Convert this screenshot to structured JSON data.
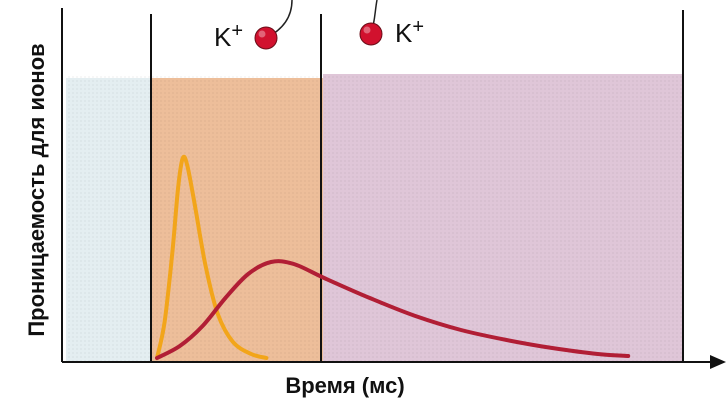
{
  "chart_data": {
    "type": "line",
    "title": "",
    "xlabel": "Время (мс)",
    "ylabel": "Проницаемость для ионов",
    "grid": false,
    "legend": "none",
    "colors": {
      "fast_curve": "#F2A51A",
      "slow_curve": "#B11E35",
      "region_1": "#E4EEF1",
      "region_2": "#EDBE9A",
      "region_3": "#DFC6D8",
      "ion_marker": "#D1112E"
    },
    "ion_labels": [
      "K+",
      "K+"
    ],
    "series": [
      {
        "color": "#F2A51A",
        "points": [
          [
            0.0,
            0.0
          ],
          [
            0.05,
            0.18
          ],
          [
            0.1,
            0.52
          ],
          [
            0.14,
            0.86
          ],
          [
            0.17,
            1.0
          ],
          [
            0.2,
            0.96
          ],
          [
            0.25,
            0.76
          ],
          [
            0.32,
            0.46
          ],
          [
            0.4,
            0.22
          ],
          [
            0.5,
            0.08
          ],
          [
            0.62,
            0.02
          ],
          [
            0.72,
            0.0
          ]
        ]
      },
      {
        "color": "#B11E35",
        "points": [
          [
            0.0,
            0.0
          ],
          [
            0.15,
            0.06
          ],
          [
            0.3,
            0.16
          ],
          [
            0.45,
            0.3
          ],
          [
            0.6,
            0.42
          ],
          [
            0.75,
            0.48
          ],
          [
            0.9,
            0.47
          ],
          [
            1.1,
            0.4
          ],
          [
            1.4,
            0.3
          ],
          [
            1.7,
            0.21
          ],
          [
            2.0,
            0.14
          ],
          [
            2.3,
            0.09
          ],
          [
            2.6,
            0.05
          ],
          [
            2.9,
            0.02
          ],
          [
            3.1,
            0.01
          ]
        ]
      }
    ]
  }
}
